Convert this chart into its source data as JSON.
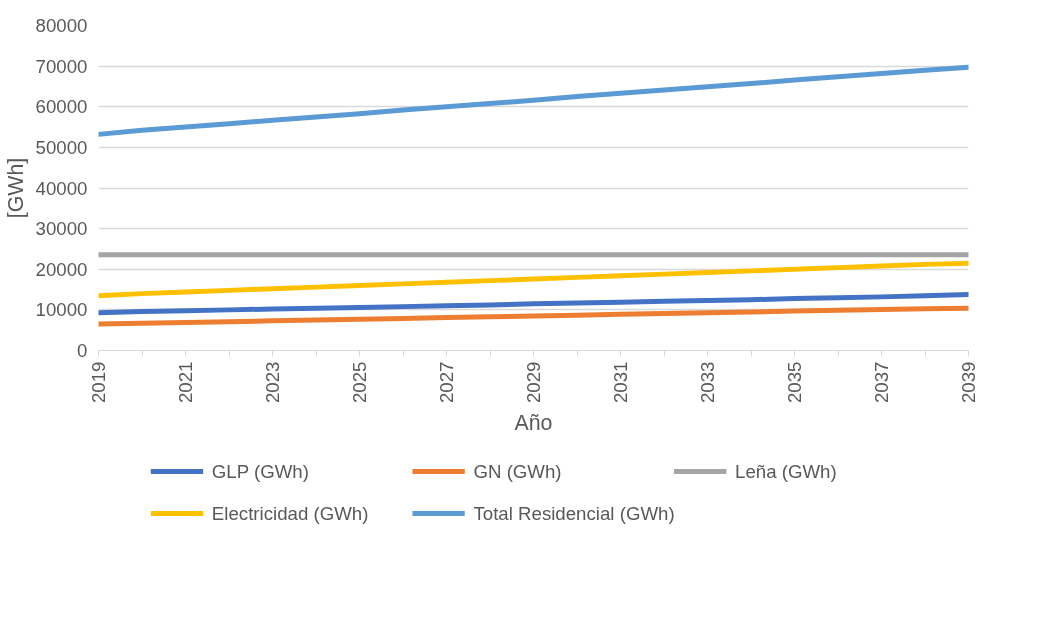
{
  "chart_data": {
    "type": "line",
    "xlabel": "Año",
    "ylabel": "[GWh]",
    "x": [
      2019,
      2020,
      2021,
      2022,
      2023,
      2024,
      2025,
      2026,
      2027,
      2028,
      2029,
      2030,
      2031,
      2032,
      2033,
      2034,
      2035,
      2036,
      2037,
      2038,
      2039
    ],
    "xlim": [
      2019,
      2039
    ],
    "xticks": [
      2019,
      {
        "value": 2020,
        "label": null
      },
      2021,
      {
        "value": 2022,
        "label": null
      },
      2023,
      {
        "value": 2024,
        "label": null
      },
      2025,
      {
        "value": 2026,
        "label": null
      },
      2027,
      {
        "value": 2028,
        "label": null
      },
      2029,
      {
        "value": 2030,
        "label": null
      },
      2031,
      {
        "value": 2032,
        "label": null
      },
      2033,
      {
        "value": 2034,
        "label": null
      },
      2035,
      {
        "value": 2036,
        "label": null
      },
      2037,
      {
        "value": 2038,
        "label": null
      },
      2039
    ],
    "ylim": [
      0,
      80000
    ],
    "yticks": [
      0,
      10000,
      20000,
      30000,
      40000,
      50000,
      60000,
      70000,
      80000
    ],
    "grid": "y",
    "legend": "bottom",
    "marker": "none",
    "line_style": "solid",
    "series": [
      {
        "name": "GLP (GWh)",
        "color": "#4472c4",
        "values": [
          9300,
          9600,
          9800,
          10000,
          10200,
          10400,
          10600,
          10800,
          11000,
          11200,
          11500,
          11700,
          11900,
          12100,
          12300,
          12500,
          12800,
          13000,
          13200,
          13500,
          13800
        ]
      },
      {
        "name": "GN (GWh)",
        "color": "#ed7d31",
        "values": [
          6500,
          6700,
          6900,
          7100,
          7300,
          7500,
          7700,
          7900,
          8100,
          8300,
          8500,
          8700,
          8900,
          9100,
          9300,
          9500,
          9700,
          9900,
          10100,
          10300,
          10400
        ]
      },
      {
        "name": "Leña (GWh)",
        "color": "#a5a5a5",
        "values": [
          23600,
          23600,
          23600,
          23600,
          23600,
          23600,
          23600,
          23600,
          23600,
          23600,
          23600,
          23600,
          23600,
          23600,
          23600,
          23600,
          23600,
          23600,
          23600,
          23600,
          23600
        ]
      },
      {
        "name": "Electricidad (GWh)",
        "color": "#ffc000",
        "values": [
          13500,
          14000,
          14400,
          14800,
          15200,
          15600,
          16000,
          16400,
          16800,
          17200,
          17600,
          18000,
          18400,
          18800,
          19200,
          19600,
          20000,
          20400,
          20800,
          21200,
          21500
        ]
      },
      {
        "name": "Total Residencial (GWh)",
        "color": "#5b9bd5",
        "values": [
          53200,
          54200,
          55000,
          55800,
          56700,
          57500,
          58300,
          59200,
          60000,
          60800,
          61600,
          62500,
          63300,
          64100,
          64900,
          65700,
          66600,
          67400,
          68200,
          69000,
          69700
        ]
      }
    ]
  }
}
